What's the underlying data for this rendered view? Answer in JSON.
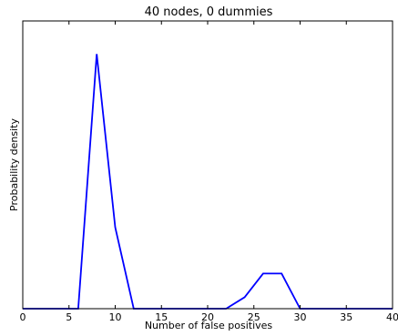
{
  "chart_data": {
    "type": "line",
    "title": "40 nodes, 0 dummies",
    "xlabel": "Number of false positives",
    "ylabel": "Probability density",
    "xlim": [
      0,
      40
    ],
    "ylim": [
      0,
      1
    ],
    "x_ticks": [
      0,
      5,
      10,
      15,
      20,
      25,
      30,
      35,
      40
    ],
    "grid": false,
    "line_color": "#0000ff",
    "series": [
      {
        "x": [
          0,
          6,
          8,
          10,
          12,
          14,
          16,
          18,
          20,
          22,
          24,
          26,
          28,
          30,
          32,
          34,
          36,
          38,
          40
        ],
        "values": [
          0,
          0,
          0.885,
          0.283,
          0,
          0,
          0,
          0,
          0,
          0,
          0.04,
          0.122,
          0.122,
          0,
          0,
          0,
          0,
          0,
          0
        ]
      }
    ]
  }
}
